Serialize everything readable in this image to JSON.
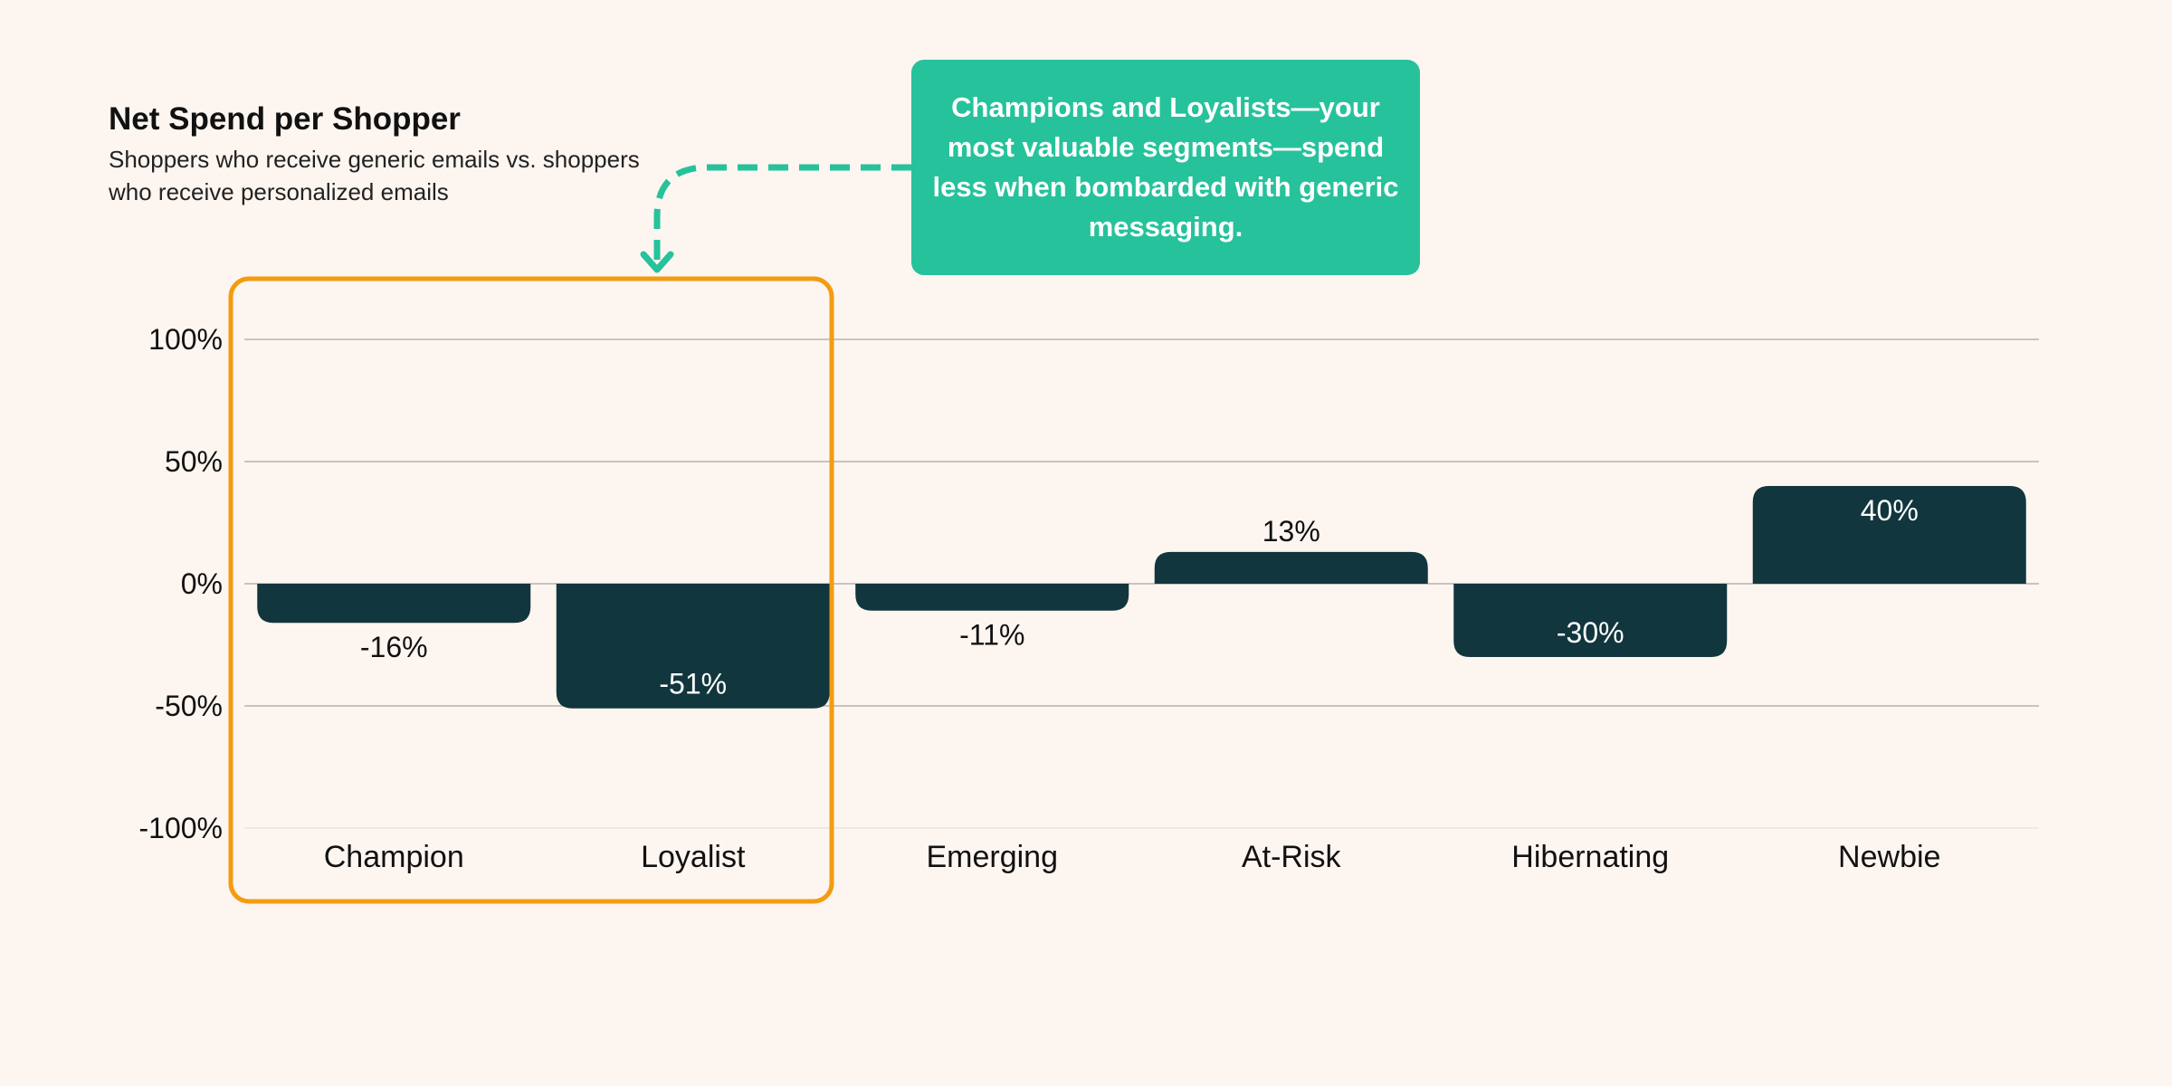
{
  "chart_data": {
    "type": "bar",
    "title": "Net Spend per Shopper",
    "subtitle": "Shoppers who receive generic emails vs. shoppers who receive personalized emails",
    "categories": [
      "Champion",
      "Loyalist",
      "Emerging",
      "At-Risk",
      "Hibernating",
      "Newbie"
    ],
    "values": [
      -16,
      -51,
      -11,
      13,
      -30,
      40
    ],
    "value_labels": [
      "-16%",
      "-51%",
      "-11%",
      "13%",
      "-30%",
      "40%"
    ],
    "ylim": [
      -100,
      100
    ],
    "yticks": [
      100,
      50,
      0,
      -50,
      -100
    ],
    "ytick_labels": [
      "100%",
      "50%",
      "0%",
      "-50%",
      "-100%"
    ],
    "xlabel": "",
    "ylabel": "",
    "grid": true,
    "highlight": {
      "categories": [
        "Champion",
        "Loyalist"
      ],
      "color": "#f39c12"
    },
    "colors": {
      "bar": "#11363d",
      "callout": "#26c29b",
      "highlight_box": "#f39c12",
      "grid": "#c9c2c2",
      "background": "#fdf5f0"
    }
  },
  "callout": {
    "text": "Champions and Loyalists—your most valuable segments—spend less when bombarded with generic messaging."
  }
}
